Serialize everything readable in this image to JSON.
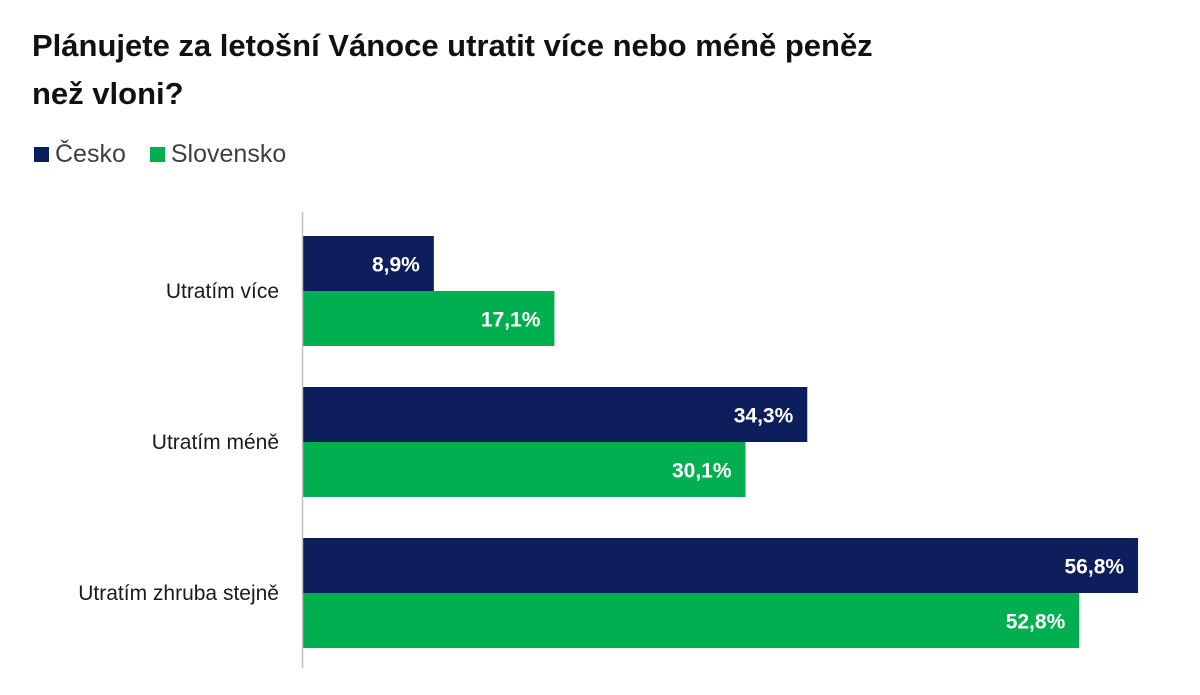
{
  "chart_data": {
    "type": "bar",
    "orientation": "horizontal",
    "title": "Plánujete za letošní Vánoce utratit více nebo méně peněz než vloni?",
    "categories": [
      "Utratím více",
      "Utratím méně",
      "Utratím zhruba stejně"
    ],
    "series": [
      {
        "name": "Česko",
        "color": "#0c1f5c",
        "values": [
          8.9,
          34.3,
          56.8
        ],
        "labels": [
          "8,9%",
          "34,3%",
          "56,8%"
        ]
      },
      {
        "name": "Slovensko",
        "color": "#00b050",
        "values": [
          17.1,
          30.1,
          52.8
        ],
        "labels": [
          "17,1%",
          "30,1%",
          "52,8%"
        ]
      }
    ],
    "xlim": [
      0,
      57
    ],
    "grid": false,
    "legend_position": "top-left"
  }
}
